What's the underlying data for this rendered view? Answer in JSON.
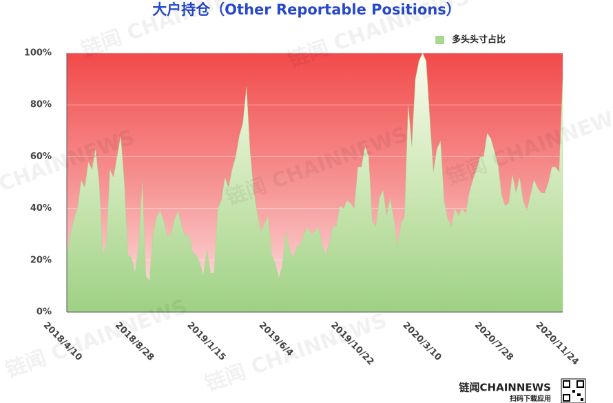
{
  "chart_data": {
    "type": "area",
    "title": "大户持仓（Other Reportable Positions）",
    "categories": [
      "2018/4/10",
      null,
      null,
      null,
      null,
      null,
      null,
      null,
      null,
      null,
      null,
      null,
      null,
      null,
      null,
      null,
      null,
      null,
      null,
      null,
      "2018/8/28",
      null,
      null,
      null,
      null,
      null,
      null,
      null,
      null,
      null,
      null,
      null,
      null,
      null,
      null,
      null,
      null,
      null,
      null,
      null,
      "2019/1/15",
      null,
      null,
      null,
      null,
      null,
      null,
      null,
      null,
      null,
      null,
      null,
      null,
      null,
      null,
      null,
      null,
      null,
      null,
      null,
      "2019/6/4",
      null,
      null,
      null,
      null,
      null,
      null,
      null,
      null,
      null,
      null,
      null,
      null,
      null,
      null,
      null,
      null,
      null,
      null,
      null,
      "2019/10/22",
      null,
      null,
      null,
      null,
      null,
      null,
      null,
      null,
      null,
      null,
      null,
      null,
      null,
      null,
      null,
      null,
      null,
      null,
      null,
      "2020/3/10",
      null,
      null,
      null,
      null,
      null,
      null,
      null,
      null,
      null,
      null,
      null,
      null,
      null,
      null,
      null,
      null,
      null,
      null,
      null,
      "2020/7/28",
      null,
      null,
      null,
      null,
      null,
      null,
      null,
      null,
      null,
      null,
      null,
      null,
      null,
      null,
      null,
      null,
      "2020/11/24",
      null
    ],
    "series": [
      {
        "name": "多头头寸占比",
        "color": "#a9d98f",
        "values": [
          21,
          30,
          36,
          40,
          51,
          48,
          58,
          55,
          63,
          50,
          22,
          26,
          55,
          52,
          60,
          68,
          50,
          22,
          21,
          15,
          25,
          50,
          14,
          12,
          30,
          37,
          39,
          35,
          29,
          30,
          36,
          39,
          33,
          29,
          30,
          23,
          22,
          19,
          14,
          24,
          15,
          15,
          40,
          43,
          52,
          48,
          55,
          60,
          68,
          73,
          87,
          62,
          47,
          38,
          31,
          34,
          37,
          22,
          19,
          13,
          18,
          31,
          24,
          21,
          25,
          26,
          30,
          33,
          30,
          31,
          33,
          26,
          22,
          26,
          33,
          33,
          41,
          40,
          43,
          42,
          40,
          56,
          56,
          64,
          60,
          35,
          33,
          44,
          47,
          37,
          44,
          36,
          25,
          34,
          37,
          80,
          64,
          90,
          97,
          100,
          97,
          75,
          54,
          63,
          66,
          43,
          36,
          33,
          40,
          37,
          40,
          38,
          46,
          51,
          55,
          60,
          60,
          69,
          67,
          62,
          57,
          45,
          41,
          42,
          53,
          46,
          52,
          43,
          39,
          45,
          51,
          48,
          46,
          46,
          50,
          56,
          56,
          54,
          90
        ]
      }
    ],
    "ylim": [
      0,
      100
    ],
    "yticks": [
      {
        "value": 0,
        "label": "0%"
      },
      {
        "value": 20,
        "label": "20%"
      },
      {
        "value": 40,
        "label": "40%"
      },
      {
        "value": 60,
        "label": "60%"
      },
      {
        "value": 80,
        "label": "80%"
      },
      {
        "value": 100,
        "label": "100%"
      }
    ],
    "grid": true,
    "legend": "top-right"
  },
  "footer": {
    "brand": "链闻CHAINNEWS",
    "caption": "扫码下载应用"
  }
}
